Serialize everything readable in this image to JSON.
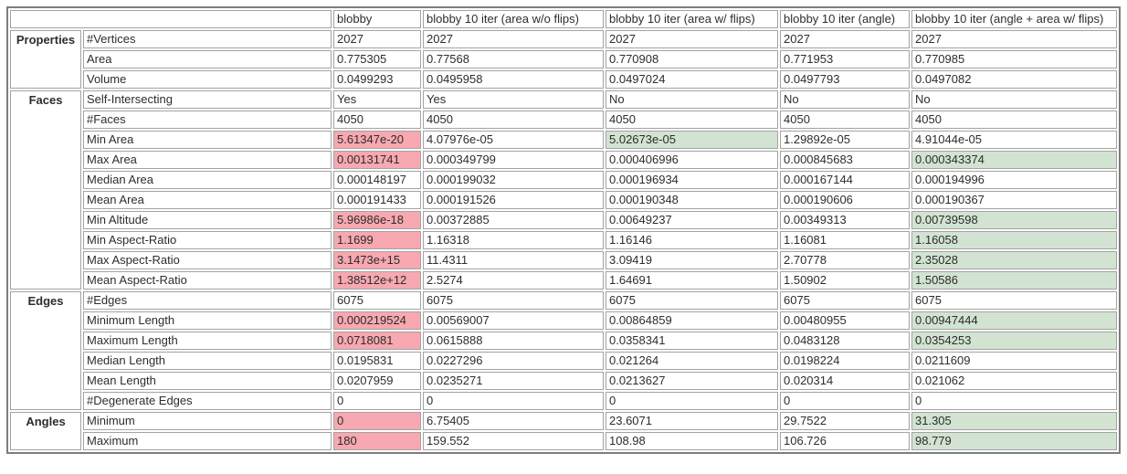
{
  "table": {
    "colors": {
      "bad": "#f7a8b0",
      "good": "#d2e3d2",
      "border_outer": "#7d7d7d",
      "border_inner": "#a3a3a3"
    },
    "column_headers": [
      "blobby",
      "blobby 10 iter (area w/o flips)",
      "blobby 10 iter (area w/ flips)",
      "blobby 10 iter (angle)",
      "blobby 10 iter (angle + area w/ flips)"
    ],
    "groups": [
      {
        "name": "Properties",
        "rows": [
          {
            "label": "#Vertices",
            "values": [
              "2027",
              "2027",
              "2027",
              "2027",
              "2027"
            ],
            "highlights": [
              null,
              null,
              null,
              null,
              null
            ]
          },
          {
            "label": "Area",
            "values": [
              "0.775305",
              "0.77568",
              "0.770908",
              "0.771953",
              "0.770985"
            ],
            "highlights": [
              null,
              null,
              null,
              null,
              null
            ]
          },
          {
            "label": "Volume",
            "values": [
              "0.0499293",
              "0.0495958",
              "0.0497024",
              "0.0497793",
              "0.0497082"
            ],
            "highlights": [
              null,
              null,
              null,
              null,
              null
            ]
          }
        ]
      },
      {
        "name": "Faces",
        "rows": [
          {
            "label": "Self-Intersecting",
            "values": [
              "Yes",
              "Yes",
              "No",
              "No",
              "No"
            ],
            "highlights": [
              null,
              null,
              null,
              null,
              null
            ]
          },
          {
            "label": "#Faces",
            "values": [
              "4050",
              "4050",
              "4050",
              "4050",
              "4050"
            ],
            "highlights": [
              null,
              null,
              null,
              null,
              null
            ]
          },
          {
            "label": "Min Area",
            "values": [
              "5.61347e-20",
              "4.07976e-05",
              "5.02673e-05",
              "1.29892e-05",
              "4.91044e-05"
            ],
            "highlights": [
              "bad",
              null,
              "good",
              null,
              null
            ]
          },
          {
            "label": "Max Area",
            "values": [
              "0.00131741",
              "0.000349799",
              "0.000406996",
              "0.000845683",
              "0.000343374"
            ],
            "highlights": [
              "bad",
              null,
              null,
              null,
              "good"
            ]
          },
          {
            "label": "Median Area",
            "values": [
              "0.000148197",
              "0.000199032",
              "0.000196934",
              "0.000167144",
              "0.000194996"
            ],
            "highlights": [
              null,
              null,
              null,
              null,
              null
            ]
          },
          {
            "label": "Mean Area",
            "values": [
              "0.000191433",
              "0.000191526",
              "0.000190348",
              "0.000190606",
              "0.000190367"
            ],
            "highlights": [
              null,
              null,
              null,
              null,
              null
            ]
          },
          {
            "label": "Min Altitude",
            "values": [
              "5.96986e-18",
              "0.00372885",
              "0.00649237",
              "0.00349313",
              "0.00739598"
            ],
            "highlights": [
              "bad",
              null,
              null,
              null,
              "good"
            ]
          },
          {
            "label": "Min Aspect-Ratio",
            "values": [
              "1.1699",
              "1.16318",
              "1.16146",
              "1.16081",
              "1.16058"
            ],
            "highlights": [
              "bad",
              null,
              null,
              null,
              "good"
            ]
          },
          {
            "label": "Max Aspect-Ratio",
            "values": [
              "3.1473e+15",
              "11.4311",
              "3.09419",
              "2.70778",
              "2.35028"
            ],
            "highlights": [
              "bad",
              null,
              null,
              null,
              "good"
            ]
          },
          {
            "label": "Mean Aspect-Ratio",
            "values": [
              "1.38512e+12",
              "2.5274",
              "1.64691",
              "1.50902",
              "1.50586"
            ],
            "highlights": [
              "bad",
              null,
              null,
              null,
              "good"
            ]
          }
        ]
      },
      {
        "name": "Edges",
        "rows": [
          {
            "label": "#Edges",
            "values": [
              "6075",
              "6075",
              "6075",
              "6075",
              "6075"
            ],
            "highlights": [
              null,
              null,
              null,
              null,
              null
            ]
          },
          {
            "label": "Minimum Length",
            "values": [
              "0.000219524",
              "0.00569007",
              "0.00864859",
              "0.00480955",
              "0.00947444"
            ],
            "highlights": [
              "bad",
              null,
              null,
              null,
              "good"
            ]
          },
          {
            "label": "Maximum Length",
            "values": [
              "0.0718081",
              "0.0615888",
              "0.0358341",
              "0.0483128",
              "0.0354253"
            ],
            "highlights": [
              "bad",
              null,
              null,
              null,
              "good"
            ]
          },
          {
            "label": "Median Length",
            "values": [
              "0.0195831",
              "0.0227296",
              "0.021264",
              "0.0198224",
              "0.0211609"
            ],
            "highlights": [
              null,
              null,
              null,
              null,
              null
            ]
          },
          {
            "label": "Mean Length",
            "values": [
              "0.0207959",
              "0.0235271",
              "0.0213627",
              "0.020314",
              "0.021062"
            ],
            "highlights": [
              null,
              null,
              null,
              null,
              null
            ]
          },
          {
            "label": "#Degenerate Edges",
            "values": [
              "0",
              "0",
              "0",
              "0",
              "0"
            ],
            "highlights": [
              null,
              null,
              null,
              null,
              null
            ]
          }
        ]
      },
      {
        "name": "Angles",
        "rows": [
          {
            "label": "Minimum",
            "values": [
              "0",
              "6.75405",
              "23.6071",
              "29.7522",
              "31.305"
            ],
            "highlights": [
              "bad",
              null,
              null,
              null,
              "good"
            ]
          },
          {
            "label": "Maximum",
            "values": [
              "180",
              "159.552",
              "108.98",
              "106.726",
              "98.779"
            ],
            "highlights": [
              "bad",
              null,
              null,
              null,
              "good"
            ]
          }
        ]
      }
    ]
  }
}
